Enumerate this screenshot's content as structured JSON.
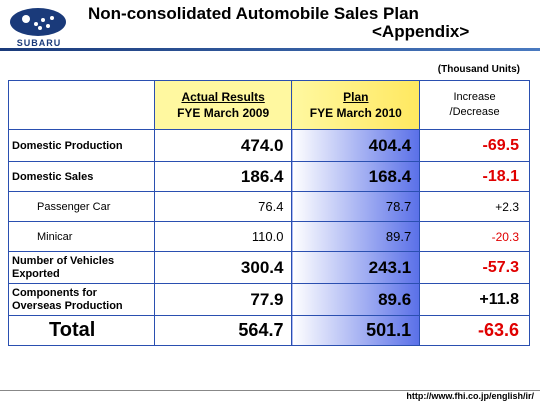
{
  "logo_text": "SUBARU",
  "title_line1": "Non-consolidated Automobile Sales Plan",
  "title_line2": "<Appendix>",
  "units": "(Thousand Units)",
  "headers": {
    "actual_title": "Actual Results",
    "actual_sub": "FYE March 2009",
    "plan_title": "Plan",
    "plan_sub": "FYE March 2010",
    "inc_line1": "Increase",
    "inc_line2": "/Decrease"
  },
  "rows": [
    {
      "label": "Domestic Production",
      "actual": "474.0",
      "plan": "404.4",
      "change": "-69.5"
    },
    {
      "label": "Domestic Sales",
      "actual": "186.4",
      "plan": "168.4",
      "change": "-18.1"
    },
    {
      "label": "Passenger Car",
      "actual": "76.4",
      "plan": "78.7",
      "change": "+2.3"
    },
    {
      "label": "Minicar",
      "actual": "110.0",
      "plan": "89.7",
      "change": "-20.3"
    },
    {
      "label_line1": "Number of Vehicles",
      "label_line2": "Exported",
      "actual": "300.4",
      "plan": "243.1",
      "change": "-57.3"
    },
    {
      "label_line1": "Components for",
      "label_line2": "Overseas Production",
      "actual": "77.9",
      "plan": "89.6",
      "change": "+11.8"
    },
    {
      "label": "Total",
      "actual": "564.7",
      "plan": "501.1",
      "change": "-63.6"
    }
  ],
  "url": "http://www.fhi.co.jp/english/ir/"
}
